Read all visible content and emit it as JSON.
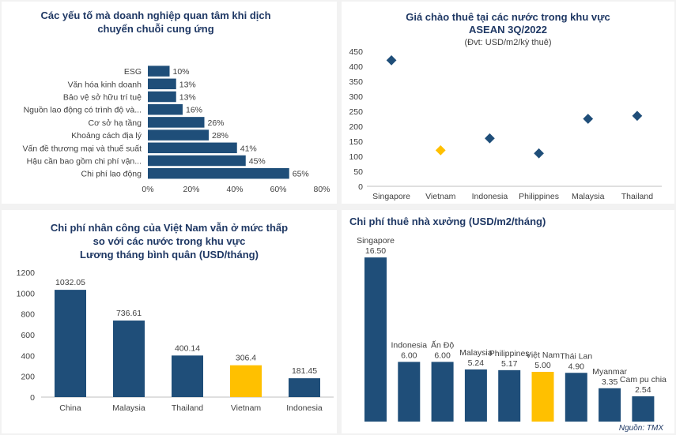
{
  "source": "Nguồn: TMX",
  "colors": {
    "navy": "#1f4e79",
    "gold": "#ffc000",
    "title": "#1f3864",
    "text": "#404040"
  },
  "chart_data": [
    {
      "type": "bar",
      "orientation": "horizontal",
      "title_line1": "Các yếu tố mà doanh nghiệp quan tâm khi dịch",
      "title_line2": "chuyển chuỗi cung ứng",
      "categories": [
        "ESG",
        "Văn hóa kinh doanh",
        "Bảo vệ sở hữu trí tuệ",
        "Nguồn lao động có trình độ và...",
        "Cơ sở hạ tầng",
        "Khoảng cách địa lý",
        "Vấn đề thương mại và thuế suất",
        "Hậu cần bao gồm chi phí vận...",
        "Chi phí lao động"
      ],
      "values": [
        10,
        13,
        13,
        16,
        26,
        28,
        41,
        45,
        65
      ],
      "data_labels": [
        "10%",
        "13%",
        "13%",
        "16%",
        "26%",
        "28%",
        "41%",
        "45%",
        "65%"
      ],
      "xticks": [
        "0%",
        "20%",
        "40%",
        "60%",
        "80%"
      ],
      "xlim": [
        0,
        80
      ]
    },
    {
      "type": "scatter",
      "title_line1": "Giá chào thuê tại các nước trong khu vực",
      "title_line2": "ASEAN 3Q/2022",
      "subtitle": "(Đvt: USD/m2/kỳ thuê)",
      "categories": [
        "Singapore",
        "Vietnam",
        "Indonesia",
        "Philippines",
        "Malaysia",
        "Thailand"
      ],
      "values": [
        420,
        120,
        160,
        110,
        225,
        235
      ],
      "highlight": "Vietnam",
      "yticks": [
        "0",
        "50",
        "100",
        "150",
        "200",
        "250",
        "300",
        "350",
        "400",
        "450"
      ],
      "ylim": [
        0,
        450
      ]
    },
    {
      "type": "bar",
      "title_line1": "Chi phí nhân công của Việt Nam vẫn ở mức thấp",
      "title_line2": "so với các nước trong khu vực",
      "title_line3": "Lương tháng bình quân (USD/tháng)",
      "categories": [
        "China",
        "Malaysia",
        "Thailand",
        "Vietnam",
        "Indonesia"
      ],
      "values": [
        1032.05,
        736.61,
        400.14,
        306.4,
        181.45
      ],
      "data_labels": [
        "1032.05",
        "736.61",
        "400.14",
        "306.4",
        "181.45"
      ],
      "highlight": "Vietnam",
      "yticks": [
        "0",
        "200",
        "400",
        "600",
        "800",
        "1000",
        "1200"
      ],
      "ylim": [
        0,
        1200
      ]
    },
    {
      "type": "bar",
      "title": "Chi phí thuê nhà xưởng (USD/m2/tháng)",
      "categories": [
        "Singapore",
        "Indonesia",
        "Ấn Độ",
        "Malaysia",
        "Philippines",
        "Việt Nam",
        "Thái Lan",
        "Myanmar",
        "Cam pu chia"
      ],
      "values": [
        16.5,
        6.0,
        6.0,
        5.24,
        5.17,
        5.0,
        4.9,
        3.35,
        2.54
      ],
      "data_labels": [
        "16.50",
        "6.00",
        "6.00",
        "5.24",
        "5.17",
        "5.00",
        "4.90",
        "3.35",
        "2.54"
      ],
      "highlight": "Việt Nam"
    }
  ]
}
